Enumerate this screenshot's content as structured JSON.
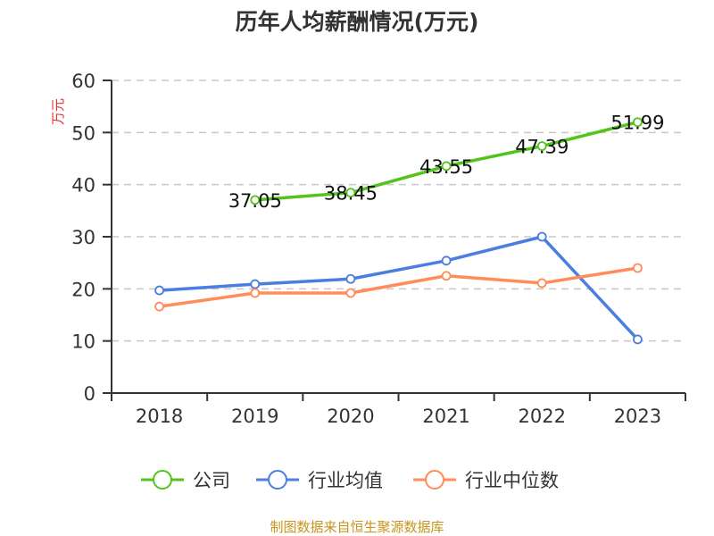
{
  "chart_data": {
    "type": "line",
    "title": "历年人均薪酬情况(万元)",
    "ylabel": "万元",
    "xlabel": "",
    "ylim": [
      0,
      60
    ],
    "yticks": [
      0,
      10,
      20,
      30,
      40,
      50,
      60
    ],
    "grid": true,
    "legend_position": "bottom",
    "categories": [
      "2018",
      "2019",
      "2020",
      "2021",
      "2022",
      "2023"
    ],
    "series": [
      {
        "name": "公司",
        "color": "#52c41a",
        "values": [
          null,
          37.05,
          38.45,
          43.55,
          47.39,
          51.99
        ],
        "labels": [
          "",
          "37.05",
          "38.45",
          "43.55",
          "47.39",
          "51.99"
        ]
      },
      {
        "name": "行业均值",
        "color": "#4a7ee0",
        "values": [
          19.7,
          20.9,
          21.9,
          25.4,
          30.0,
          10.3
        ]
      },
      {
        "name": "行业中位数",
        "color": "#ff8c5a",
        "values": [
          16.6,
          19.2,
          19.2,
          22.5,
          21.1,
          24.0
        ]
      }
    ]
  },
  "footer": "制图数据来自恒生聚源数据库"
}
